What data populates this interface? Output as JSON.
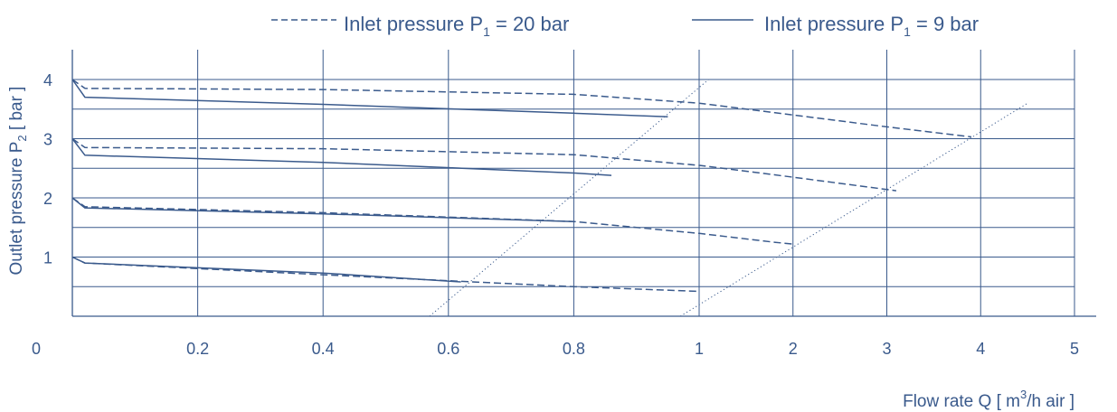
{
  "chart_data": {
    "type": "line",
    "ylabel": {
      "prefix": "Outlet pressure P",
      "sub": "2",
      "suffix": " [ bar ]"
    },
    "xlabel": {
      "prefix": "Flow rate Q [ m",
      "sup": "3",
      "suffix": "/h air ]"
    },
    "origin_label": "0",
    "x_ticks": [
      "0.2",
      "0.4",
      "0.6",
      "0.8",
      "1",
      "2",
      "3",
      "4",
      "5"
    ],
    "y_ticks": [
      "1",
      "2",
      "3",
      "4"
    ],
    "x_axis_segments": [
      {
        "from": 0,
        "to": 1,
        "scale": "linear",
        "tick_step": 0.2
      },
      {
        "from": 1,
        "to": 5,
        "scale": "linear",
        "tick_step": 1
      }
    ],
    "ylim": [
      0,
      4.5
    ],
    "grid": true,
    "legend_position": "top",
    "legend": [
      {
        "prefix": "Inlet pressure P",
        "sub": "1",
        "suffix": " = 20 bar",
        "style": "dashed"
      },
      {
        "prefix": "Inlet pressure P",
        "sub": "1",
        "suffix": " = 9 bar",
        "style": "solid"
      }
    ],
    "series": [
      {
        "group": "20 bar",
        "set_pressure": 4,
        "style": "dashed",
        "points": [
          [
            0,
            4.0
          ],
          [
            0.02,
            3.85
          ],
          [
            0.4,
            3.83
          ],
          [
            0.8,
            3.75
          ],
          [
            1,
            3.6
          ],
          [
            2,
            3.4
          ],
          [
            3,
            3.2
          ],
          [
            3.9,
            3.03
          ]
        ]
      },
      {
        "group": "20 bar",
        "set_pressure": 3,
        "style": "dashed",
        "points": [
          [
            0,
            3.0
          ],
          [
            0.02,
            2.85
          ],
          [
            0.4,
            2.83
          ],
          [
            0.8,
            2.73
          ],
          [
            1,
            2.55
          ],
          [
            2,
            2.35
          ],
          [
            3.1,
            2.12
          ]
        ]
      },
      {
        "group": "20 bar",
        "set_pressure": 2,
        "style": "dashed",
        "points": [
          [
            0,
            2.0
          ],
          [
            0.02,
            1.85
          ],
          [
            0.4,
            1.75
          ],
          [
            0.8,
            1.6
          ],
          [
            1,
            1.4
          ],
          [
            1.8,
            1.25
          ],
          [
            2,
            1.22
          ]
        ]
      },
      {
        "group": "20 bar",
        "set_pressure": 1,
        "style": "dashed",
        "points": [
          [
            0,
            1.0
          ],
          [
            0.02,
            0.9
          ],
          [
            0.4,
            0.7
          ],
          [
            0.8,
            0.5
          ],
          [
            1,
            0.42
          ]
        ]
      },
      {
        "group": "9 bar",
        "set_pressure": 4,
        "style": "solid",
        "points": [
          [
            0,
            4.0
          ],
          [
            0.02,
            3.7
          ],
          [
            0.4,
            3.58
          ],
          [
            0.8,
            3.43
          ],
          [
            0.95,
            3.37
          ]
        ]
      },
      {
        "group": "9 bar",
        "set_pressure": 3,
        "style": "solid",
        "points": [
          [
            0,
            3.0
          ],
          [
            0.02,
            2.72
          ],
          [
            0.4,
            2.6
          ],
          [
            0.8,
            2.42
          ],
          [
            0.86,
            2.38
          ]
        ]
      },
      {
        "group": "9 bar",
        "set_pressure": 2,
        "style": "solid",
        "points": [
          [
            0,
            2.0
          ],
          [
            0.02,
            1.83
          ],
          [
            0.4,
            1.73
          ],
          [
            0.8,
            1.6
          ]
        ]
      },
      {
        "group": "9 bar",
        "set_pressure": 1,
        "style": "solid",
        "points": [
          [
            0,
            1.0
          ],
          [
            0.02,
            0.9
          ],
          [
            0.4,
            0.73
          ],
          [
            0.62,
            0.58
          ]
        ]
      }
    ],
    "limit_lines": [
      {
        "style": "dotted",
        "points": [
          [
            0.57,
            0
          ],
          [
            1.1,
            4.0
          ]
        ]
      },
      {
        "style": "dotted",
        "points": [
          [
            0.97,
            0
          ],
          [
            4.5,
            3.6
          ]
        ]
      }
    ],
    "colors": {
      "axis": "#3a5a8c",
      "grid": "#3a5a8c",
      "series": "#3a5a8c",
      "text": "#3a5a8c"
    }
  }
}
